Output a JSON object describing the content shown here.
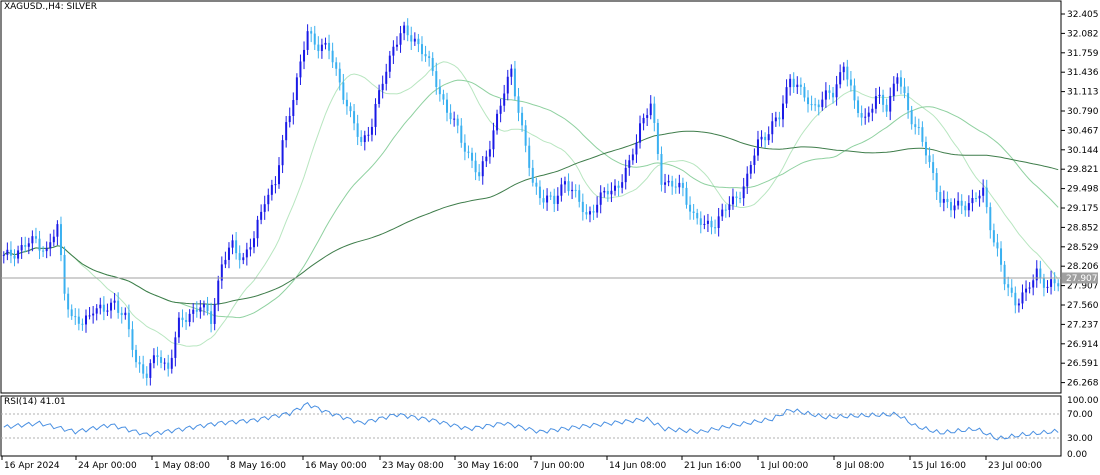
{
  "chart": {
    "title": "XAGUSD.,H4:  SILVER",
    "current_price": "27.907",
    "colors": {
      "bull": "#1a1ae6",
      "bear": "#3ab0f0",
      "ma_fast": "#b8e6c0",
      "ma_mid": "#8fd1a0",
      "ma_slow": "#3f7d4b",
      "rsi": "#4a90e2",
      "price_line": "#a0a0a0",
      "price_tag_bg": "#a0a0a0",
      "price_tag_text": "#ffffff"
    }
  },
  "price_axis": {
    "labels": [
      "32.405",
      "32.082",
      "31.759",
      "31.436",
      "31.113",
      "30.790",
      "30.467",
      "30.144",
      "29.821",
      "29.498",
      "29.175",
      "28.852",
      "28.529",
      "28.206",
      "27.907",
      "27.560",
      "27.237",
      "26.914",
      "26.591",
      "26.268"
    ]
  },
  "time_axis": {
    "labels": [
      "16 Apr 2024",
      "24 Apr 00:00",
      "1 May 08:00",
      "8 May 16:00",
      "16 May 00:00",
      "23 May 08:00",
      "30 May 16:00",
      "7 Jun 00:00",
      "14 Jun 08:00",
      "21 Jun 16:00",
      "1 Jul 00:00",
      "8 Jul 08:00",
      "15 Jul 16:00",
      "23 Jul 00:00"
    ]
  },
  "rsi": {
    "title": "RSI(14) 41.01",
    "levels": [
      "100.00",
      "70.00",
      "30.00",
      "0.00"
    ]
  },
  "chart_data": {
    "type": "candlestick",
    "symbol": "XAGUSD.",
    "timeframe": "H4",
    "ylim": [
      26.1,
      32.5
    ],
    "x_labels": [
      "16 Apr 2024",
      "24 Apr 00:00",
      "1 May 08:00",
      "8 May 16:00",
      "16 May 00:00",
      "23 May 08:00",
      "30 May 16:00",
      "7 Jun 00:00",
      "14 Jun 08:00",
      "21 Jun 16:00",
      "1 Jul 00:00",
      "8 Jul 08:00",
      "15 Jul 16:00",
      "23 Jul 00:00"
    ],
    "close_path": [
      [
        0,
        28.3
      ],
      [
        3,
        28.4
      ],
      [
        6,
        28.5
      ],
      [
        9,
        28.6
      ],
      [
        12,
        28.4
      ],
      [
        15,
        28.8
      ],
      [
        17,
        27.8
      ],
      [
        19,
        27.3
      ],
      [
        22,
        27.2
      ],
      [
        25,
        27.5
      ],
      [
        28,
        27.4
      ],
      [
        31,
        27.6
      ],
      [
        34,
        27.3
      ],
      [
        37,
        26.6
      ],
      [
        40,
        26.4
      ],
      [
        43,
        26.7
      ],
      [
        46,
        26.5
      ],
      [
        49,
        27.2
      ],
      [
        52,
        27.4
      ],
      [
        55,
        27.5
      ],
      [
        58,
        27.3
      ],
      [
        61,
        28.2
      ],
      [
        64,
        28.5
      ],
      [
        67,
        28.3
      ],
      [
        70,
        28.6
      ],
      [
        73,
        29.3
      ],
      [
        76,
        29.5
      ],
      [
        79,
        30.5
      ],
      [
        82,
        31.2
      ],
      [
        85,
        32.0
      ],
      [
        88,
        31.8
      ],
      [
        91,
        31.7
      ],
      [
        94,
        31.2
      ],
      [
        97,
        30.6
      ],
      [
        100,
        30.2
      ],
      [
        103,
        30.5
      ],
      [
        106,
        31.2
      ],
      [
        109,
        31.8
      ],
      [
        112,
        32.0
      ],
      [
        115,
        31.9
      ],
      [
        118,
        31.6
      ],
      [
        121,
        31.2
      ],
      [
        124,
        30.7
      ],
      [
        127,
        30.4
      ],
      [
        130,
        30.0
      ],
      [
        133,
        29.6
      ],
      [
        136,
        30.2
      ],
      [
        139,
        30.8
      ],
      [
        142,
        31.4
      ],
      [
        145,
        30.4
      ],
      [
        148,
        29.5
      ],
      [
        151,
        29.3
      ],
      [
        154,
        29.2
      ],
      [
        157,
        29.6
      ],
      [
        160,
        29.3
      ],
      [
        163,
        29.0
      ],
      [
        166,
        29.2
      ],
      [
        169,
        29.4
      ],
      [
        172,
        29.5
      ],
      [
        175,
        29.8
      ],
      [
        178,
        30.5
      ],
      [
        181,
        30.8
      ],
      [
        184,
        29.6
      ],
      [
        187,
        29.5
      ],
      [
        190,
        29.4
      ],
      [
        193,
        29.0
      ],
      [
        196,
        28.8
      ],
      [
        199,
        28.9
      ],
      [
        202,
        29.1
      ],
      [
        205,
        29.3
      ],
      [
        208,
        29.6
      ],
      [
        211,
        30.2
      ],
      [
        214,
        30.4
      ],
      [
        217,
        30.6
      ],
      [
        220,
        31.3
      ],
      [
        223,
        31.0
      ],
      [
        226,
        30.8
      ],
      [
        229,
        30.9
      ],
      [
        232,
        31.0
      ],
      [
        235,
        31.5
      ],
      [
        238,
        30.8
      ],
      [
        241,
        30.6
      ],
      [
        244,
        30.9
      ],
      [
        247,
        30.8
      ],
      [
        250,
        31.3
      ],
      [
        253,
        30.7
      ],
      [
        256,
        30.4
      ],
      [
        259,
        29.8
      ],
      [
        262,
        29.3
      ],
      [
        265,
        29.1
      ],
      [
        268,
        29.2
      ],
      [
        271,
        29.2
      ],
      [
        274,
        29.4
      ],
      [
        277,
        28.6
      ],
      [
        280,
        27.9
      ],
      [
        283,
        27.6
      ],
      [
        286,
        27.7
      ],
      [
        289,
        28.1
      ],
      [
        292,
        27.8
      ],
      [
        295,
        27.9
      ]
    ],
    "rsi_path": [
      [
        0,
        48
      ],
      [
        10,
        55
      ],
      [
        20,
        40
      ],
      [
        30,
        52
      ],
      [
        40,
        35
      ],
      [
        50,
        45
      ],
      [
        60,
        55
      ],
      [
        70,
        60
      ],
      [
        80,
        72
      ],
      [
        85,
        88
      ],
      [
        90,
        75
      ],
      [
        100,
        55
      ],
      [
        110,
        70
      ],
      [
        120,
        60
      ],
      [
        130,
        45
      ],
      [
        140,
        55
      ],
      [
        150,
        40
      ],
      [
        160,
        48
      ],
      [
        170,
        55
      ],
      [
        180,
        62
      ],
      [
        185,
        45
      ],
      [
        195,
        40
      ],
      [
        205,
        52
      ],
      [
        215,
        62
      ],
      [
        220,
        78
      ],
      [
        230,
        65
      ],
      [
        240,
        68
      ],
      [
        250,
        70
      ],
      [
        255,
        50
      ],
      [
        262,
        38
      ],
      [
        272,
        45
      ],
      [
        278,
        28
      ],
      [
        285,
        35
      ],
      [
        295,
        41
      ]
    ]
  }
}
